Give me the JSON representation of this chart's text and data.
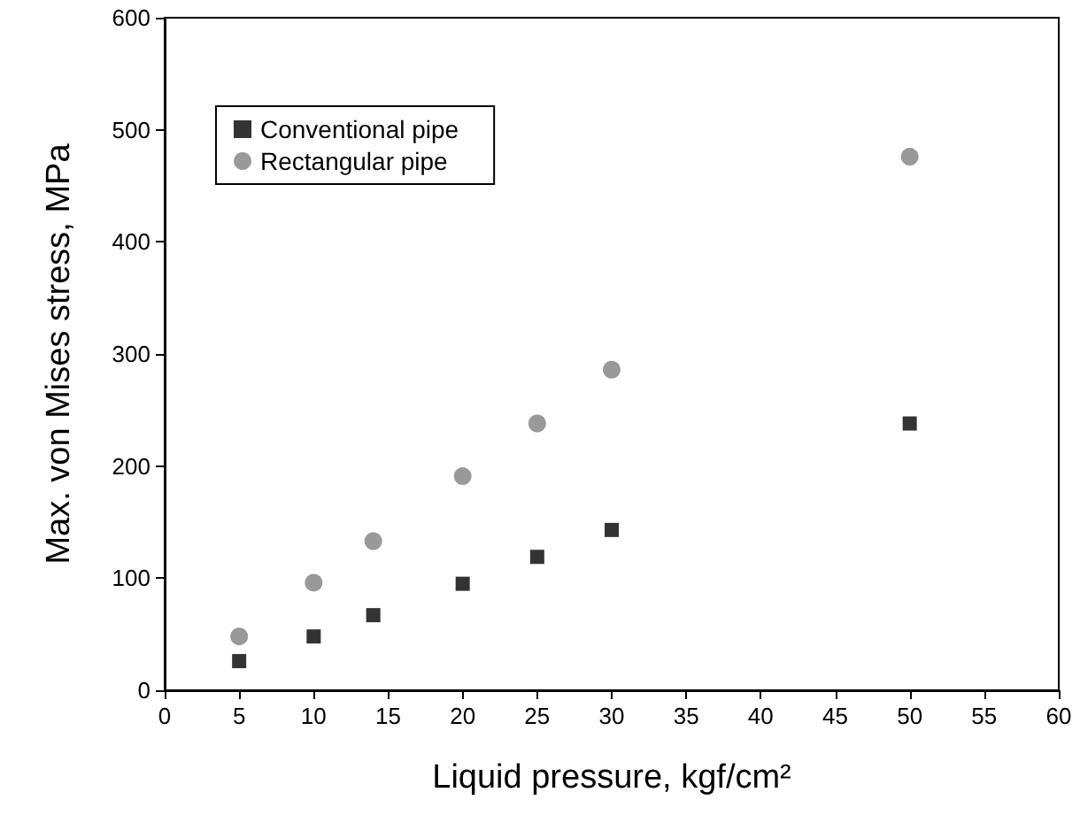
{
  "chart_data": {
    "type": "scatter",
    "xlabel": "Liquid pressure, kgf/cm²",
    "ylabel": "Max. von Mises stress, MPa",
    "x": [
      5,
      10,
      14,
      20,
      25,
      30,
      50
    ],
    "series": [
      {
        "name": "Conventional pipe",
        "color": "#000000",
        "marker": "square",
        "values": [
          26,
          48,
          67,
          95,
          119,
          143,
          238
        ]
      },
      {
        "name": "Rectangular pipe",
        "color": "#808080",
        "marker": "circle",
        "values": [
          48,
          96,
          133,
          191,
          238,
          286,
          476
        ]
      }
    ],
    "xlim": [
      0,
      60
    ],
    "xticks": [
      0,
      5,
      10,
      15,
      20,
      25,
      30,
      35,
      40,
      45,
      50,
      55,
      60
    ],
    "ylim": [
      0,
      600
    ],
    "yticks": [
      0,
      100,
      200,
      300,
      400,
      500,
      600
    ],
    "grid": false,
    "legend": "top left"
  }
}
